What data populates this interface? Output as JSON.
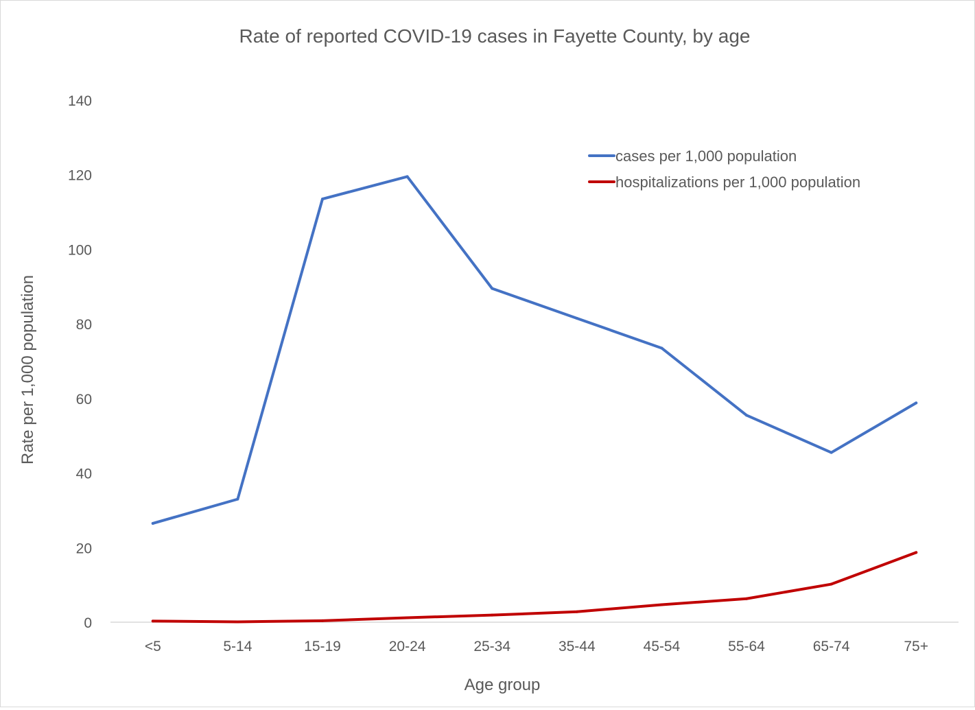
{
  "chart_data": {
    "type": "line",
    "title": "Rate of reported COVID-19 cases in Fayette County, by age",
    "xlabel": "Age group",
    "ylabel": "Rate per 1,000 population",
    "categories": [
      "<5",
      "5-14",
      "15-19",
      "20-24",
      "25-34",
      "35-44",
      "45-54",
      "55-64",
      "65-74",
      "75+"
    ],
    "ylim": [
      0,
      140
    ],
    "yticks": [
      "0",
      "20",
      "40",
      "60",
      "80",
      "100",
      "120",
      "140"
    ],
    "grid": false,
    "legend_position": "top-right",
    "series": [
      {
        "name": "cases per 1,000 population",
        "color": "#4472c4",
        "values": [
          26.5,
          33,
          113.5,
          119.5,
          89.5,
          81.5,
          73.5,
          55.5,
          45.5,
          58.8
        ]
      },
      {
        "name": "hospitalizations per 1,000 population",
        "color": "#c00000",
        "values": [
          0.3,
          0.1,
          0.4,
          1.2,
          1.9,
          2.8,
          4.7,
          6.3,
          10.2,
          18.7
        ]
      }
    ]
  }
}
